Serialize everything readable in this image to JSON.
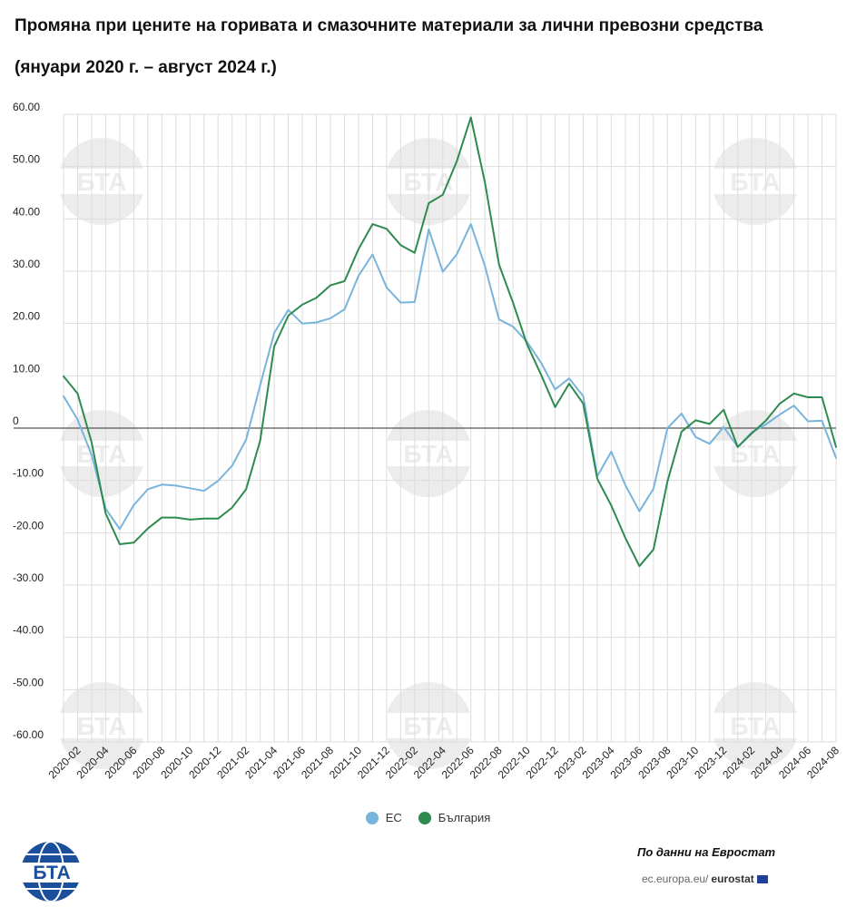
{
  "title_line1": "Промяна при цените на горивата и смазочните материали за лични превозни средства",
  "title_line2": "(януари 2020 г. – август 2024 г.)",
  "source": "По данни на Евростат",
  "site_prefix": "ec.europa.eu/",
  "site_bold": "eurostat",
  "logo_text": "БТА",
  "watermark_text": "БТА",
  "colors": {
    "eu": "#78b4dc",
    "bg": "#2e8b4f",
    "zero_line": "#555555",
    "grid": "#dddddd",
    "logo": "#1b4f9c"
  },
  "chart_data": {
    "type": "line",
    "title": "Промяна при цените на горивата и смазочните материали за лични превозни средства",
    "subtitle": "(януари 2020 г. – август 2024 г.)",
    "ylim": [
      -60,
      60
    ],
    "yticks": [
      -60,
      -50,
      -40,
      -30,
      -20,
      -10,
      0,
      10,
      20,
      30,
      40,
      50,
      60
    ],
    "ytick_labels": [
      "-60.00",
      "-50.00",
      "-40.00",
      "-30.00",
      "-20.00",
      "-10.00",
      "0",
      "10.00",
      "20.00",
      "30.00",
      "40.00",
      "50.00",
      "60.00"
    ],
    "x": [
      "2020-01",
      "2020-02",
      "2020-03",
      "2020-04",
      "2020-05",
      "2020-06",
      "2020-07",
      "2020-08",
      "2020-09",
      "2020-10",
      "2020-11",
      "2020-12",
      "2021-01",
      "2021-02",
      "2021-03",
      "2021-04",
      "2021-05",
      "2021-06",
      "2021-07",
      "2021-08",
      "2021-09",
      "2021-10",
      "2021-11",
      "2021-12",
      "2022-01",
      "2022-02",
      "2022-03",
      "2022-04",
      "2022-05",
      "2022-06",
      "2022-07",
      "2022-08",
      "2022-09",
      "2022-10",
      "2022-11",
      "2022-12",
      "2023-01",
      "2023-02",
      "2023-03",
      "2023-04",
      "2023-05",
      "2023-06",
      "2023-07",
      "2023-08",
      "2023-09",
      "2023-10",
      "2023-11",
      "2023-12",
      "2024-01",
      "2024-02",
      "2024-03",
      "2024-04",
      "2024-05",
      "2024-06",
      "2024-07",
      "2024-08"
    ],
    "x_tick_labels": [
      "2020-02",
      "2020-04",
      "2020-06",
      "2020-08",
      "2020-10",
      "2020-12",
      "2021-02",
      "2021-04",
      "2021-06",
      "2021-08",
      "2021-10",
      "2021-12",
      "2022-02",
      "2022-04",
      "2022-06",
      "2022-08",
      "2022-10",
      "2022-12",
      "2023-02",
      "2023-04",
      "2023-06",
      "2023-08",
      "2023-10",
      "2023-12",
      "2024-02",
      "2024-04",
      "2024-06",
      "2024-08"
    ],
    "legend_position": "bottom",
    "series": [
      {
        "name": "ЕС",
        "color": "#78b4dc",
        "values": [
          6.1,
          1.6,
          -5.1,
          -15.4,
          -19.3,
          -14.7,
          -11.7,
          -10.8,
          -11.0,
          -11.5,
          -12.0,
          -10.1,
          -7.2,
          -2.2,
          8.2,
          18.2,
          22.6,
          20.0,
          20.2,
          21.0,
          22.7,
          29.1,
          33.2,
          26.9,
          24.0,
          24.1,
          38.0,
          29.9,
          33.2,
          39.0,
          31.0,
          20.8,
          19.4,
          16.5,
          12.5,
          7.4,
          9.5,
          6.1,
          -9.2,
          -4.5,
          -10.9,
          -15.9,
          -11.6,
          0.0,
          2.8,
          -1.7,
          -3.0,
          0.2,
          -3.6,
          -0.8,
          0.7,
          2.6,
          4.3,
          1.3,
          1.4,
          -5.7
        ]
      },
      {
        "name": "България",
        "color": "#2e8b4f",
        "values": [
          9.9,
          6.6,
          -2.7,
          -16.3,
          -22.2,
          -21.9,
          -19.2,
          -17.1,
          -17.1,
          -17.5,
          -17.3,
          -17.3,
          -15.2,
          -11.7,
          -2.4,
          15.6,
          21.5,
          23.6,
          24.9,
          27.3,
          28.1,
          34.2,
          39.0,
          38.1,
          35.0,
          33.5,
          43.0,
          44.6,
          51.0,
          59.4,
          47.0,
          31.3,
          24.0,
          16.0,
          10.2,
          4.0,
          8.5,
          4.7,
          -9.7,
          -14.8,
          -21.0,
          -26.4,
          -23.2,
          -10.2,
          -0.7,
          1.5,
          0.8,
          3.5,
          -3.6,
          -1.0,
          1.4,
          4.7,
          6.6,
          5.9,
          5.9,
          -3.6
        ]
      }
    ]
  }
}
